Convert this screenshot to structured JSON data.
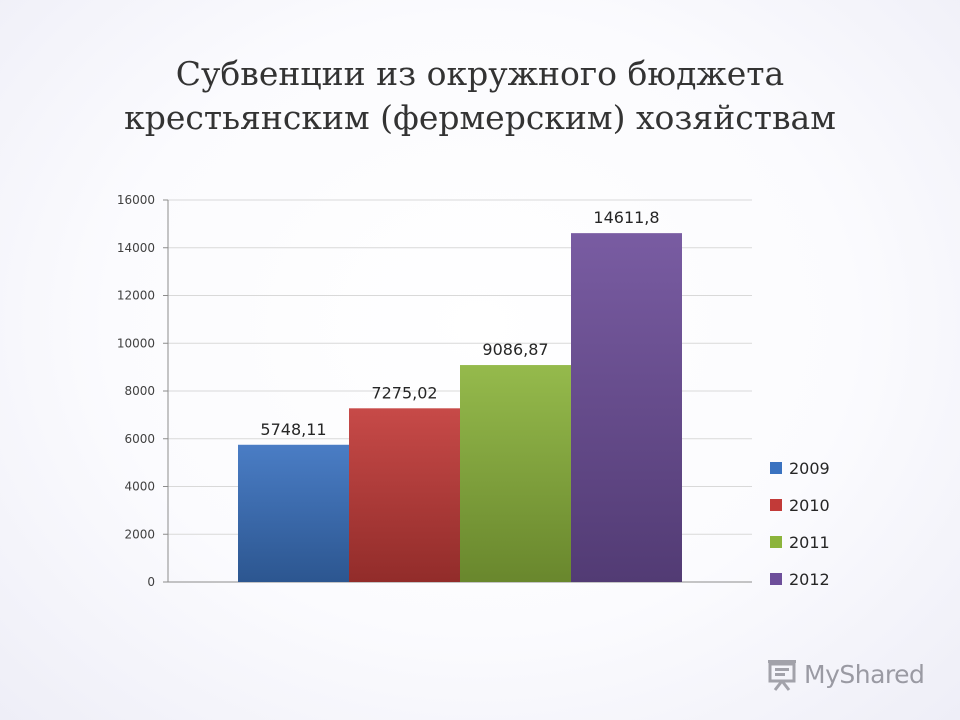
{
  "slide": {
    "title_lines": [
      "Субвенции из окружного бюджета",
      "крестьянским (фермерским) хозяйствам"
    ]
  },
  "chart_data": {
    "type": "bar",
    "title": "",
    "xlabel": "",
    "ylabel": "",
    "ylim": [
      0,
      16000
    ],
    "yticks": [
      0,
      2000,
      4000,
      6000,
      8000,
      10000,
      12000,
      14000,
      16000
    ],
    "grid": true,
    "legend_position": "right",
    "series": [
      {
        "name": "2009",
        "value": 5748.11,
        "label": "5748,11",
        "color": "#3a72c0"
      },
      {
        "name": "2010",
        "value": 7275.02,
        "label": "7275,02",
        "color": "#c23a38"
      },
      {
        "name": "2011",
        "value": 9086.87,
        "label": "9086,87",
        "color": "#8cb43c"
      },
      {
        "name": "2012",
        "value": 14611.8,
        "label": "14611,8",
        "color": "#6d4e9a"
      }
    ]
  },
  "watermark": {
    "text": "MyShared",
    "icon": "projector-screen-icon"
  }
}
